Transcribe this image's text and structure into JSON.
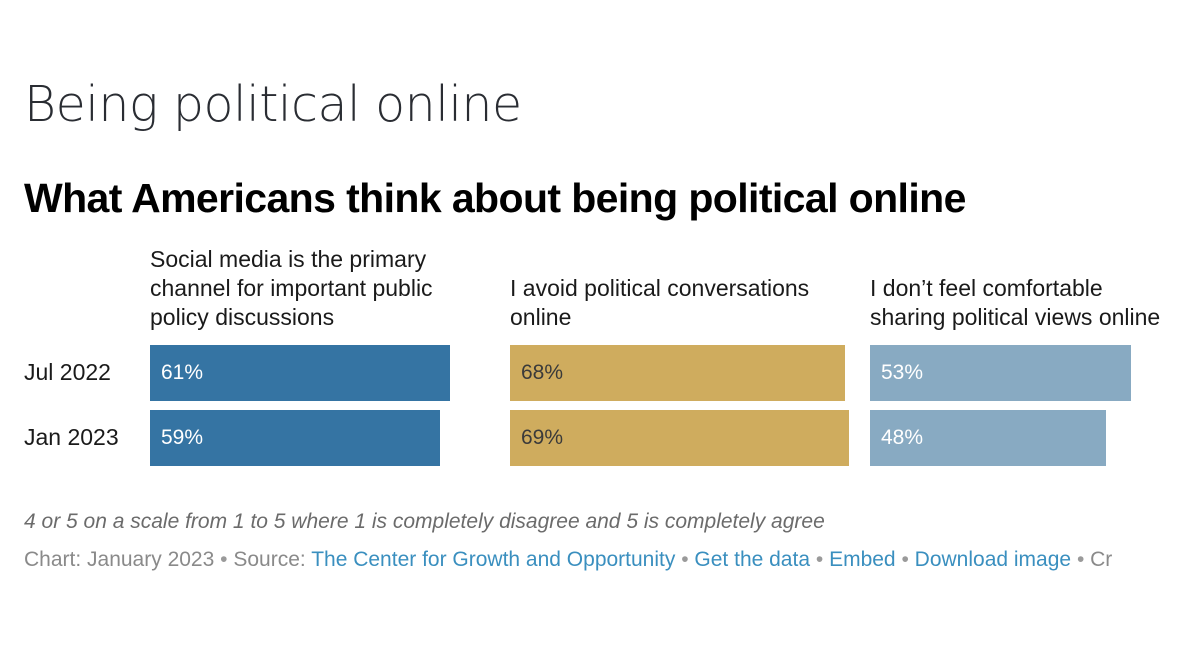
{
  "page": {
    "title": "Being political online"
  },
  "chart_data": {
    "type": "bar",
    "orientation": "horizontal",
    "title": "What Americans think about being political online",
    "categories": [
      "Jul 2022",
      "Jan 2023"
    ],
    "unit": "%",
    "xlim": [
      0,
      100
    ],
    "panels": [
      {
        "name": "Social media is the primary channel for important public policy discussions",
        "head_lines": [
          "Social media is the primary",
          "channel for important public",
          "policy discussions"
        ],
        "color": "#3574a3",
        "label_color": "#ffffff",
        "values": [
          61,
          59
        ]
      },
      {
        "name": "I avoid political conversations online",
        "head_lines": [
          "I avoid political conversations",
          "online"
        ],
        "color": "#cfac5e",
        "label_color": "#3a3a3a",
        "values": [
          68,
          69
        ]
      },
      {
        "name": "I don’t feel comfortable sharing political views online",
        "head_lines": [
          "I don’t feel comfortable",
          "sharing political views online"
        ],
        "color": "#88aac2",
        "label_color": "#ffffff",
        "values": [
          53,
          48
        ]
      }
    ],
    "note": "4 or 5 on a scale from 1 to 5 where 1 is completely disagree and 5 is completely agree"
  },
  "footer": {
    "chart_prefix": "Chart: January 2023",
    "source_prefix": "Source:",
    "source_link": "The Center for Growth and Opportunity",
    "get_data": "Get the data",
    "embed": "Embed",
    "download": "Download image",
    "created_truncated": "Cr",
    "separator": "•"
  }
}
